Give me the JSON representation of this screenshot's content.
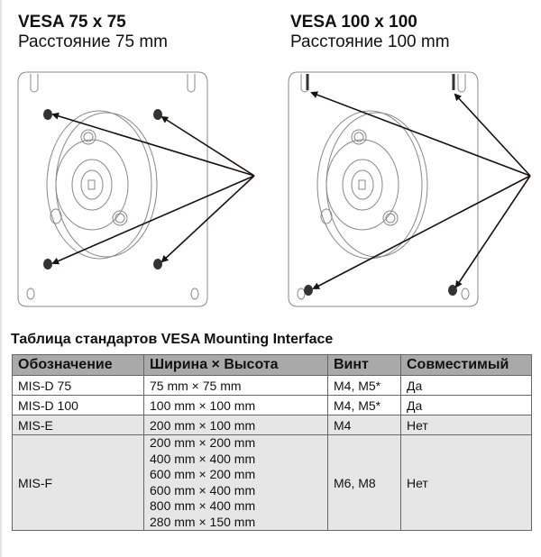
{
  "left_diagram": {
    "title": "VESA 75 x 75",
    "subtitle": "Расстояние 75 mm"
  },
  "right_diagram": {
    "title": "VESA 100 x 100",
    "subtitle": "Расстояние 100 mm"
  },
  "table": {
    "title": "Таблица стандартов VESA Mounting Interface",
    "headers": [
      "Обозначение",
      "Ширина × Высота",
      "Винт",
      "Совместимый"
    ],
    "rows": [
      {
        "name": "MIS-D 75",
        "sizes": [
          "75 mm × 75 mm"
        ],
        "screw": "M4, M5*",
        "compatible": "Да"
      },
      {
        "name": "MIS-D 100",
        "sizes": [
          "100 mm × 100 mm"
        ],
        "screw": "M4, M5*",
        "compatible": "Да"
      },
      {
        "name": "MIS-E",
        "sizes": [
          "200 mm × 100 mm"
        ],
        "screw": "M4",
        "compatible": "Нет"
      },
      {
        "name": "MIS-F",
        "sizes": [
          "200 mm × 200 mm",
          "400 mm × 400 mm",
          "600 mm × 200 mm",
          "600 mm × 400 mm",
          "800 mm × 400 mm",
          "280 mm × 150 mm"
        ],
        "screw": "M6, M8",
        "compatible": "Нет"
      }
    ]
  },
  "colors": {
    "header_bg": "#a9a9a9",
    "shaded_row_bg": "#e6e6e6",
    "arrow": "#1a1010"
  }
}
